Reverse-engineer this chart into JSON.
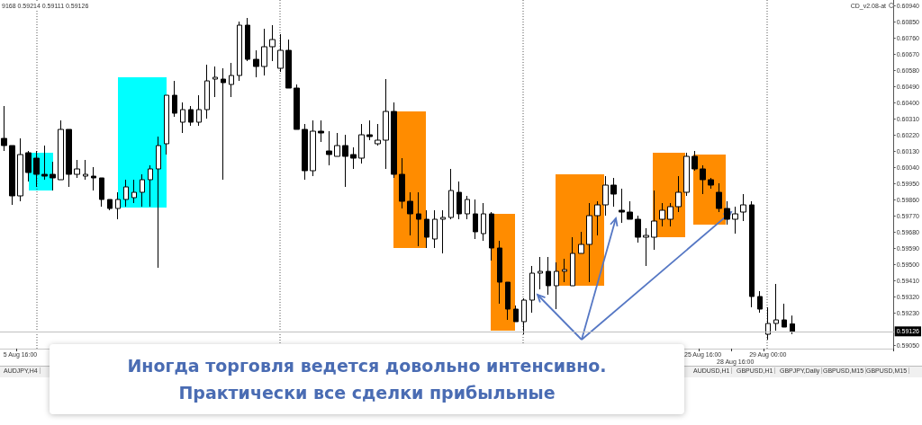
{
  "chart_data": {
    "type": "candlestick",
    "title": "Иногда торговля ведется довольно интенсивно.",
    "subtitle": "Практически все сделки прибыльные",
    "annotations": [
      "9168 0.59214 0.59111 0.59126",
      "CD_v2.08-at",
      "AUDJPY,H4",
      "AUDUSD,H1",
      "GBPUSD,H1",
      "GBPJPY,Daily",
      "GBPUSD,M15",
      "GBPUSD,M15"
    ],
    "categories": [
      null,
      null,
      "5 Aug 16:00",
      null,
      null,
      null,
      null,
      null,
      null,
      null,
      null,
      null,
      null,
      null,
      null,
      null,
      null,
      null,
      null,
      null,
      null,
      null,
      null,
      null,
      null,
      null,
      null,
      null,
      null,
      null,
      null,
      null,
      null,
      null,
      null,
      null,
      null,
      null,
      null,
      null,
      null,
      null,
      null,
      null,
      null,
      null,
      null,
      null,
      null,
      null,
      null,
      null,
      null,
      null,
      null,
      null,
      null,
      null,
      null,
      null,
      null,
      null,
      null,
      null,
      null,
      null,
      null,
      null,
      null,
      null,
      null,
      null,
      null,
      null,
      null,
      null,
      null,
      null,
      null,
      null,
      null,
      null,
      null,
      null,
      null,
      null,
      "25 Aug 16:00",
      null,
      null,
      null,
      "28 Aug 16:00",
      null,
      null,
      null,
      "29 Aug 00:00",
      null,
      null,
      null,
      null,
      null,
      null,
      null,
      null,
      null,
      null,
      null,
      null,
      null,
      null,
      null
    ],
    "ohlc": [
      [
        0.602,
        0.6038,
        0.6013,
        0.6016
      ],
      [
        0.6016,
        0.6016,
        0.5983,
        0.5988
      ],
      [
        0.5988,
        0.602,
        0.5985,
        0.6011
      ],
      [
        0.6012,
        0.6013,
        0.5996,
        0.6001
      ],
      [
        0.6009,
        0.6013,
        0.5993,
        0.6
      ],
      [
        0.6,
        0.6016,
        0.5997,
        0.5999
      ],
      [
        0.6,
        0.6007,
        0.5991,
        0.5998
      ],
      [
        0.5997,
        0.603,
        0.5997,
        0.6025
      ],
      [
        0.6025,
        0.6025,
        0.5993,
        0.6
      ],
      [
        0.6,
        0.6008,
        0.5998,
        0.6003
      ],
      [
        0.5999,
        0.6008,
        0.5997,
        0.6
      ],
      [
        0.5999,
        0.6004,
        0.5991,
        0.5998
      ],
      [
        0.5998,
        0.5998,
        0.5982,
        0.5986
      ],
      [
        0.5986,
        0.5986,
        0.598,
        0.5981
      ],
      [
        0.5981,
        0.599,
        0.5975,
        0.5986
      ],
      [
        0.5986,
        0.5997,
        0.5982,
        0.5993
      ],
      [
        0.5987,
        0.5997,
        0.5984,
        0.599
      ],
      [
        0.599,
        0.6,
        0.5982,
        0.5997
      ],
      [
        0.5997,
        0.6005,
        0.5982,
        0.6003
      ],
      [
        0.6003,
        0.6021,
        0.5948,
        0.6016
      ],
      [
        0.6017,
        0.6044,
        0.6011,
        0.6044
      ],
      [
        0.6044,
        0.6052,
        0.6032,
        0.6034
      ],
      [
        0.6029,
        0.604,
        0.6023,
        0.6036
      ],
      [
        0.6036,
        0.6038,
        0.6027,
        0.6029
      ],
      [
        0.6029,
        0.6044,
        0.6027,
        0.6036
      ],
      [
        0.6036,
        0.6061,
        0.6031,
        0.6052
      ],
      [
        0.6053,
        0.606,
        0.6043,
        0.6054
      ],
      [
        0.6053,
        0.6059,
        0.5997,
        0.6051
      ],
      [
        0.605,
        0.6062,
        0.6043,
        0.6055
      ],
      [
        0.6055,
        0.6085,
        0.6052,
        0.6083
      ],
      [
        0.6083,
        0.6087,
        0.6063,
        0.6064
      ],
      [
        0.6064,
        0.6069,
        0.6054,
        0.606
      ],
      [
        0.606,
        0.6081,
        0.6055,
        0.6071
      ],
      [
        0.6071,
        0.6083,
        0.6063,
        0.6075
      ],
      [
        0.6059,
        0.6078,
        0.6057,
        0.6069
      ],
      [
        0.6069,
        0.6075,
        0.6048,
        0.6048
      ],
      [
        0.6048,
        0.605,
        0.6025,
        0.6025
      ],
      [
        0.6025,
        0.6028,
        0.5997,
        0.6002
      ],
      [
        0.6002,
        0.603,
        0.5999,
        0.6024
      ],
      [
        0.6024,
        0.603,
        0.6018,
        0.6023
      ],
      [
        0.6013,
        0.6024,
        0.6005,
        0.6011
      ],
      [
        0.601,
        0.6023,
        0.601,
        0.6016
      ],
      [
        0.6016,
        0.6022,
        0.5993,
        0.601
      ],
      [
        0.6011,
        0.6015,
        0.6003,
        0.6009
      ],
      [
        0.6009,
        0.6028,
        0.6006,
        0.6022
      ],
      [
        0.6022,
        0.603,
        0.6019,
        0.6021
      ],
      [
        0.6017,
        0.6028,
        0.6016,
        0.6019
      ],
      [
        0.6019,
        0.6053,
        0.6003,
        0.6035
      ],
      [
        0.6035,
        0.604,
        0.5998,
        0.6
      ],
      [
        0.6,
        0.6009,
        0.5981,
        0.5985
      ],
      [
        0.5985,
        0.599,
        0.5966,
        0.5978
      ],
      [
        0.5978,
        0.599,
        0.596,
        0.5975
      ],
      [
        0.5975,
        0.598,
        0.5959,
        0.5965
      ],
      [
        0.5964,
        0.598,
        0.5959,
        0.5975
      ],
      [
        0.5975,
        0.598,
        0.5956,
        0.5976
      ],
      [
        0.5976,
        0.6003,
        0.5975,
        0.5991
      ],
      [
        0.599,
        0.5996,
        0.5975,
        0.5978
      ],
      [
        0.5978,
        0.5988,
        0.5975,
        0.5986
      ],
      [
        0.5978,
        0.5986,
        0.5964,
        0.5968
      ],
      [
        0.5967,
        0.5984,
        0.5963,
        0.5978
      ],
      [
        0.5978,
        0.5979,
        0.5952,
        0.5959
      ],
      [
        0.5959,
        0.5963,
        0.5928,
        0.594
      ],
      [
        0.594,
        0.594,
        0.5919,
        0.5925
      ],
      [
        0.5925,
        0.5927,
        0.5918,
        0.5918
      ],
      [
        0.5918,
        0.5931,
        0.5911,
        0.593
      ],
      [
        0.593,
        0.5949,
        0.5923,
        0.5945
      ],
      [
        0.5945,
        0.5954,
        0.5936,
        0.5946
      ],
      [
        0.5946,
        0.5954,
        0.5933,
        0.5938
      ],
      [
        0.5938,
        0.5951,
        0.5925,
        0.5946
      ],
      [
        0.5946,
        0.5953,
        0.594,
        0.5947
      ],
      [
        0.5938,
        0.5965,
        0.5938,
        0.5956
      ],
      [
        0.5956,
        0.5968,
        0.5956,
        0.5961
      ],
      [
        0.5961,
        0.5984,
        0.594,
        0.5977
      ],
      [
        0.5977,
        0.5985,
        0.5966,
        0.5983
      ],
      [
        0.5983,
        0.5999,
        0.5977,
        0.5994
      ],
      [
        0.5994,
        0.5998,
        0.5982,
        0.5989
      ],
      [
        0.598,
        0.5992,
        0.5973,
        0.5979
      ],
      [
        0.5979,
        0.5985,
        0.5975,
        0.5975
      ],
      [
        0.5975,
        0.5977,
        0.5962,
        0.5965
      ],
      [
        0.5965,
        0.597,
        0.5949,
        0.5966
      ],
      [
        0.5965,
        0.5991,
        0.5958,
        0.5974
      ],
      [
        0.5975,
        0.5984,
        0.5971,
        0.598
      ],
      [
        0.5975,
        0.5984,
        0.5971,
        0.5982
      ],
      [
        0.5982,
        0.5999,
        0.5979,
        0.599
      ],
      [
        0.599,
        0.6012,
        0.5988,
        0.601
      ],
      [
        0.601,
        0.6013,
        0.6002,
        0.6003
      ],
      [
        0.6003,
        0.6005,
        0.5989,
        0.5997
      ],
      [
        0.5997,
        0.5998,
        0.5992,
        0.5994
      ],
      [
        0.599,
        0.5995,
        0.5979,
        0.5981
      ],
      [
        0.5981,
        0.5985,
        0.5972,
        0.5975
      ],
      [
        0.5975,
        0.5982,
        0.5967,
        0.5978
      ],
      [
        0.5979,
        0.5989,
        0.5974,
        0.5983
      ],
      [
        0.5983,
        0.5985,
        0.5926,
        0.5932
      ],
      [
        0.5932,
        0.5935,
        0.5923,
        0.5925
      ],
      [
        0.5911,
        0.5926,
        0.5908,
        0.5917
      ],
      [
        0.5917,
        0.5939,
        0.5913,
        0.5919
      ],
      [
        0.5919,
        0.5928,
        0.5915,
        0.5915
      ],
      [
        0.59168,
        0.59214,
        0.59111,
        0.59126
      ],
      null,
      null,
      null,
      null,
      null,
      null,
      null,
      null,
      null,
      null,
      null,
      null
    ],
    "ylim": [
      0.5903,
      0.6097
    ],
    "yticks": [
      {
        "value": 0.6094,
        "label": "0.60940"
      },
      {
        "value": 0.6085,
        "label": "0.60850"
      },
      {
        "value": 0.6076,
        "label": "0.60760"
      },
      {
        "value": 0.6067,
        "label": "0.60670"
      },
      {
        "value": 0.6058,
        "label": "0.60580"
      },
      {
        "value": 0.6049,
        "label": "0.60490"
      },
      {
        "value": 0.604,
        "label": "0.60400"
      },
      {
        "value": 0.6031,
        "label": "0.60310"
      },
      {
        "value": 0.6022,
        "label": "0.60220"
      },
      {
        "value": 0.6013,
        "label": "0.60130"
      },
      {
        "value": 0.6004,
        "label": "0.60040"
      },
      {
        "value": 0.5995,
        "label": "0.59950"
      },
      {
        "value": 0.5986,
        "label": "0.59860"
      },
      {
        "value": 0.5977,
        "label": "0.59770"
      },
      {
        "value": 0.5968,
        "label": "0.59680"
      },
      {
        "value": 0.5959,
        "label": "0.59590"
      },
      {
        "value": 0.595,
        "label": "0.59500"
      },
      {
        "value": 0.5941,
        "label": "0.59410"
      },
      {
        "value": 0.5932,
        "label": "0.59320"
      },
      {
        "value": 0.5923,
        "label": "0.59230"
      },
      {
        "value": 0.5905,
        "label": "0.59050"
      }
    ],
    "ref_lines": [
      {
        "axis": "y",
        "value": 0.59126,
        "label": "0.59126",
        "color": "#c0c0c0",
        "line_style": "solid"
      }
    ]
  }
}
